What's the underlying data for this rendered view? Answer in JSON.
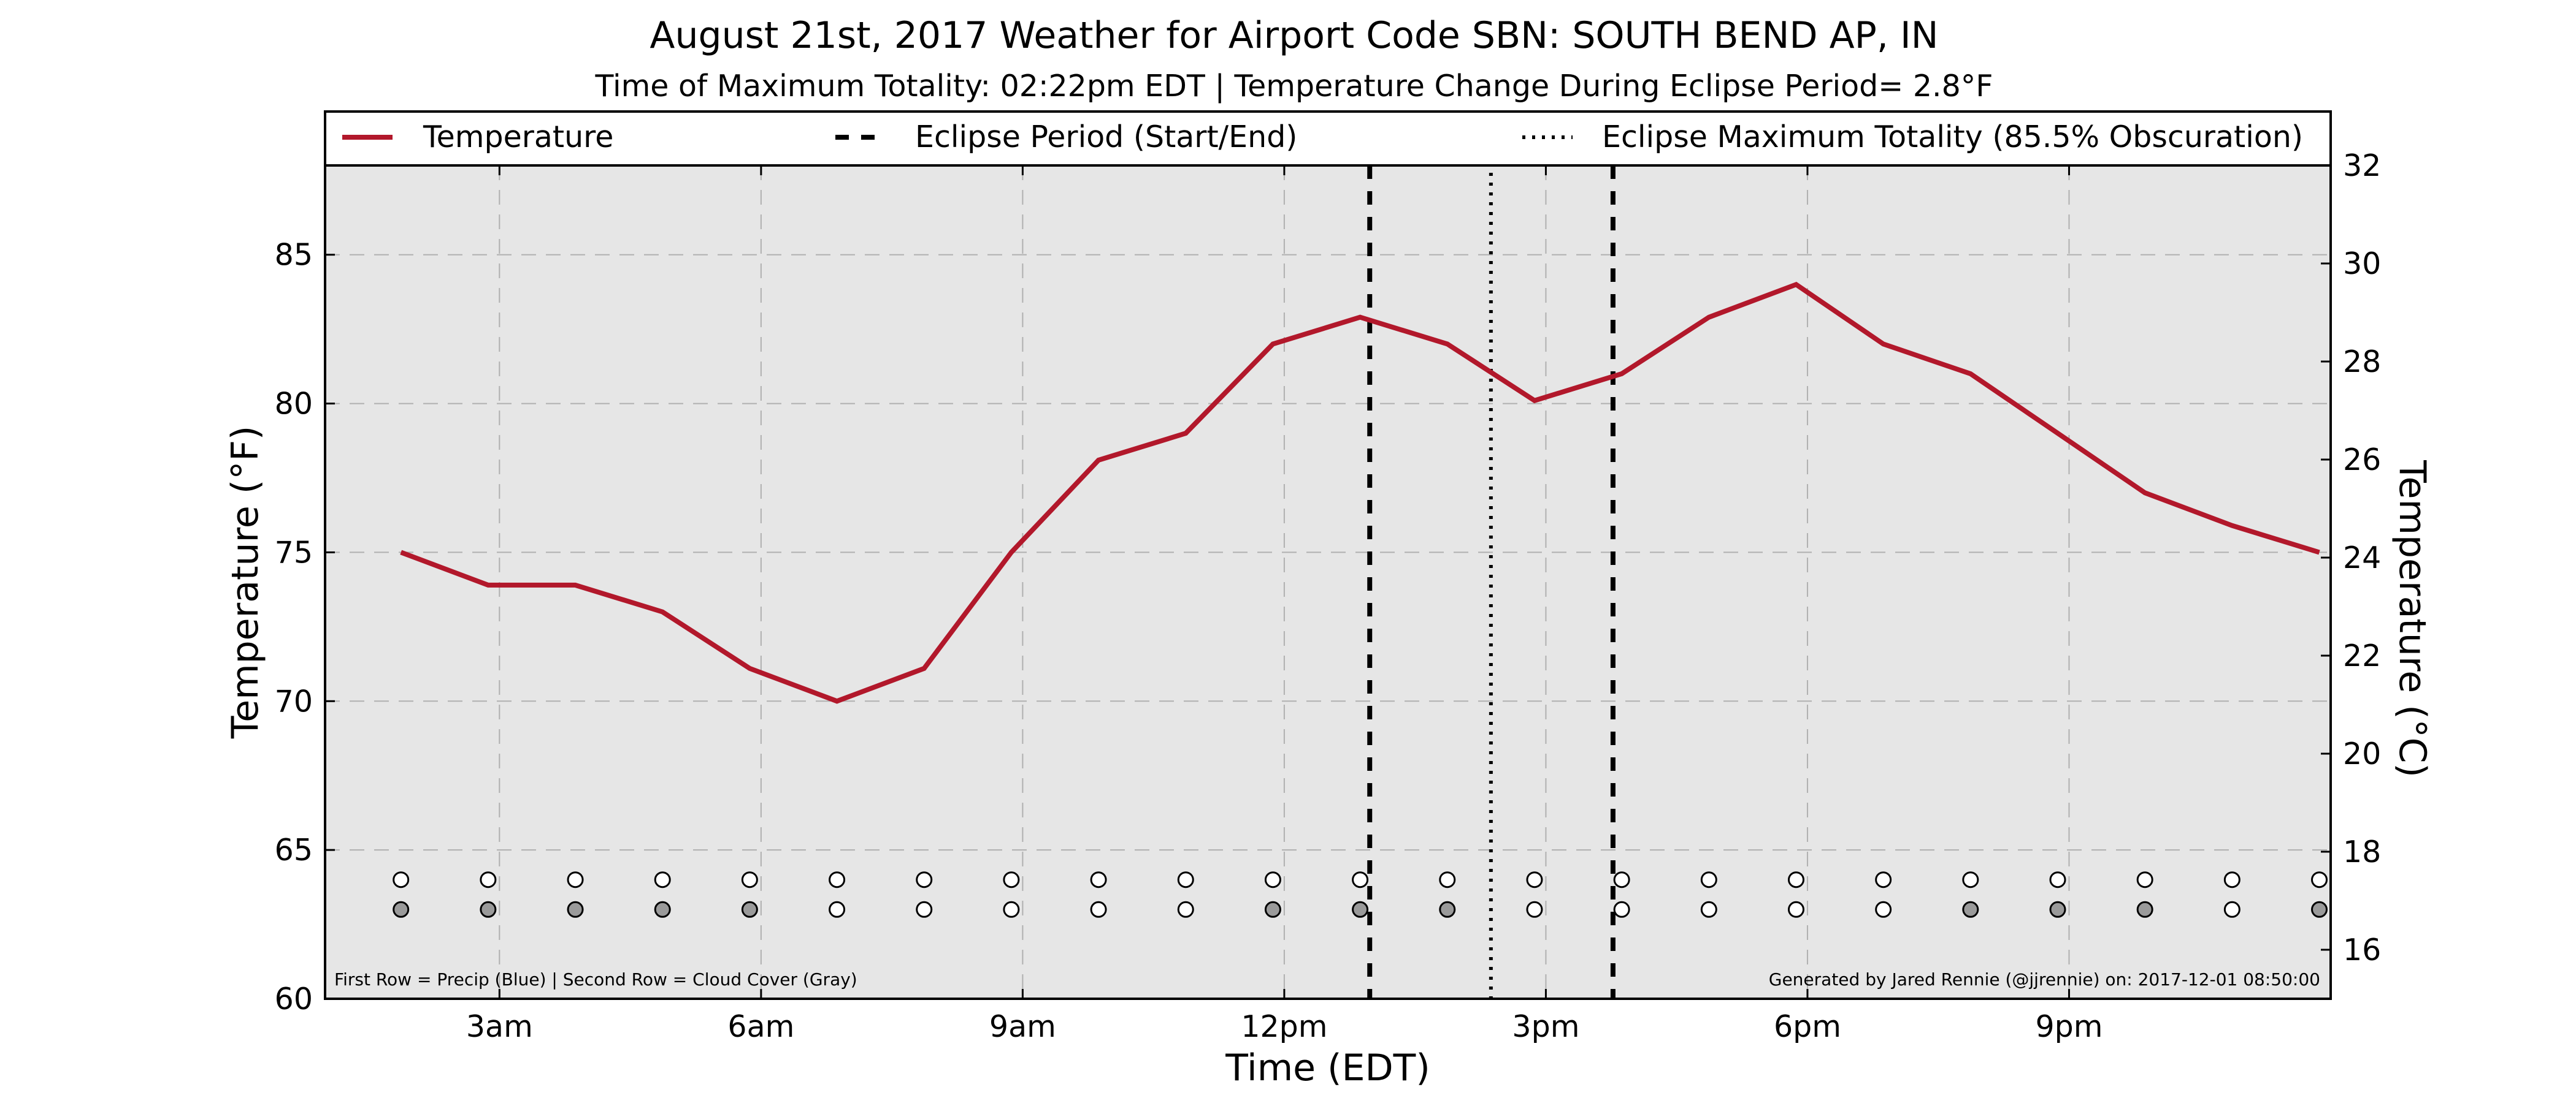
{
  "chart_data": {
    "type": "line",
    "title": "August 21st, 2017 Weather for Airport Code SBN: SOUTH BEND AP, IN",
    "subtitle": "Time of Maximum Totality: 02:22pm EDT | Temperature Change During Eclipse Period= 2.8°F",
    "xlabel": "Time (EDT)",
    "ylabel": "Temperature (°F)",
    "ylabel_right": "Temperature (°C)",
    "xlim": [
      1,
      24
    ],
    "ylim": [
      60,
      88
    ],
    "ylim_right": [
      15.0,
      32.0
    ],
    "grid": true,
    "legend_position": "top",
    "x_ticks": [
      {
        "x": 3,
        "label": "3am"
      },
      {
        "x": 6,
        "label": "6am"
      },
      {
        "x": 9,
        "label": "9am"
      },
      {
        "x": 12,
        "label": "12pm"
      },
      {
        "x": 15,
        "label": "3pm"
      },
      {
        "x": 18,
        "label": "6pm"
      },
      {
        "x": 21,
        "label": "9pm"
      }
    ],
    "y_ticks": [
      60,
      65,
      70,
      75,
      80,
      85
    ],
    "y_ticks_right": [
      16,
      18,
      20,
      22,
      24,
      26,
      28,
      30,
      32
    ],
    "series": [
      {
        "name": "Temperature",
        "color": "#b2182b",
        "x": [
          1.87,
          2.87,
          3.87,
          4.87,
          5.87,
          6.87,
          7.87,
          8.87,
          9.87,
          10.87,
          11.87,
          12.87,
          13.87,
          14.87,
          15.87,
          16.87,
          17.87,
          18.87,
          19.87,
          20.87,
          21.87,
          22.87,
          23.87
        ],
        "values": [
          75.0,
          73.9,
          73.9,
          73.0,
          71.1,
          70.0,
          71.1,
          75.0,
          78.1,
          79.0,
          82.0,
          82.9,
          82.0,
          80.1,
          81.0,
          82.9,
          84.0,
          82.0,
          81.0,
          79.0,
          77.0,
          75.9,
          75.0
        ]
      }
    ],
    "legend": [
      {
        "label": "Temperature",
        "style": "solid",
        "color": "#b2182b"
      },
      {
        "label": "Eclipse Period (Start/End)",
        "style": "dashed",
        "color": "#000000"
      },
      {
        "label": "Eclipse Maximum Totality (85.5% Obscuration)",
        "style": "dotted",
        "color": "#000000"
      }
    ],
    "eclipse": {
      "start_x": 12.98,
      "max_x": 14.37,
      "end_x": 15.77
    },
    "indicator_rows": {
      "x": [
        1.87,
        2.87,
        3.87,
        4.87,
        5.87,
        6.87,
        7.87,
        8.87,
        9.87,
        10.87,
        11.87,
        12.87,
        13.87,
        14.87,
        15.87,
        16.87,
        17.87,
        18.87,
        19.87,
        20.87,
        21.87,
        22.87,
        23.87
      ],
      "row1_y": 64,
      "row2_y": 63,
      "precip_filled": [
        false,
        false,
        false,
        false,
        false,
        false,
        false,
        false,
        false,
        false,
        false,
        false,
        false,
        false,
        false,
        false,
        false,
        false,
        false,
        false,
        false,
        false,
        false
      ],
      "cloud_filled": [
        true,
        true,
        true,
        true,
        true,
        false,
        false,
        false,
        false,
        false,
        true,
        true,
        true,
        false,
        false,
        false,
        false,
        false,
        true,
        true,
        true,
        false,
        true
      ],
      "precip_color": "#4a78c8",
      "cloud_color": "#9a9a9a"
    },
    "footnote_left": "First Row = Precip (Blue) | Second Row = Cloud Cover (Gray)",
    "footnote_right": "Generated by Jared Rennie (@jjrennie) on: 2017-12-01 08:50:00",
    "colors": {
      "plot_background": "#e6e6e6",
      "grid": "#b0b0b0"
    }
  }
}
